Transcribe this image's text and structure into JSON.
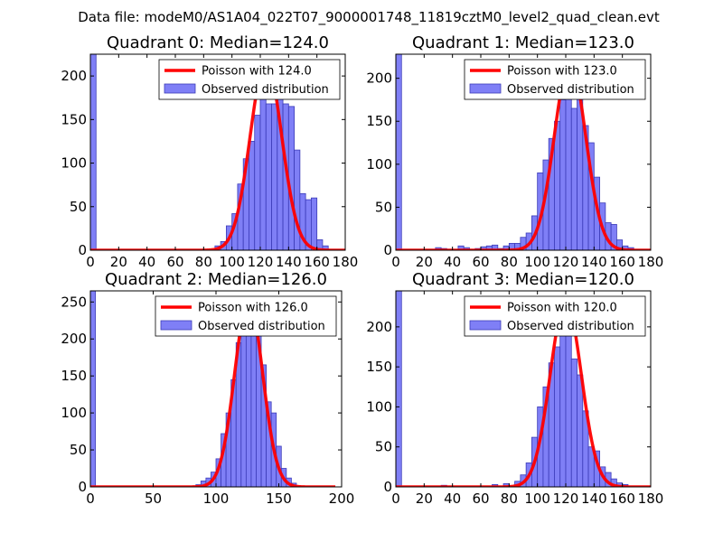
{
  "figure": {
    "suptitle": "Data file: modeM0/AS1A04_022T07_9000001748_11819cztM0_level2_quad_clean.evt",
    "colors": {
      "hist_fill": "#7f7ff6",
      "hist_edge": "#3b3bb8",
      "poisson_line": "#ff0000"
    }
  },
  "chart_data": [
    {
      "type": "bar",
      "title": "Quadrant 0: Median=124.0",
      "xlim": [
        0,
        180
      ],
      "ylim": [
        0,
        225
      ],
      "xticks": [
        "0",
        "20",
        "40",
        "60",
        "80",
        "100",
        "120",
        "140",
        "160",
        "180"
      ],
      "yticks": [
        "0",
        "50",
        "100",
        "150",
        "200"
      ],
      "legend": {
        "placement": "top-right",
        "line_label": "Poisson with 124.0",
        "hist_label": "Observed distribution"
      },
      "poisson": {
        "mean": 124.0,
        "peak": 217,
        "sigma": 11.1,
        "range": [
          0,
          180
        ]
      },
      "bin_width": 4,
      "bars": [
        {
          "x": 0,
          "value": 225
        },
        {
          "x": 88,
          "value": 5
        },
        {
          "x": 92,
          "value": 10
        },
        {
          "x": 96,
          "value": 28
        },
        {
          "x": 100,
          "value": 42
        },
        {
          "x": 104,
          "value": 76
        },
        {
          "x": 108,
          "value": 105
        },
        {
          "x": 112,
          "value": 125
        },
        {
          "x": 116,
          "value": 155
        },
        {
          "x": 120,
          "value": 210
        },
        {
          "x": 124,
          "value": 168
        },
        {
          "x": 128,
          "value": 168
        },
        {
          "x": 132,
          "value": 200
        },
        {
          "x": 136,
          "value": 168
        },
        {
          "x": 140,
          "value": 165
        },
        {
          "x": 144,
          "value": 115
        },
        {
          "x": 148,
          "value": 65
        },
        {
          "x": 152,
          "value": 58
        },
        {
          "x": 156,
          "value": 60
        },
        {
          "x": 160,
          "value": 12
        },
        {
          "x": 164,
          "value": 5
        }
      ]
    },
    {
      "type": "bar",
      "title": "Quadrant 1: Median=123.0",
      "xlim": [
        0,
        180
      ],
      "ylim": [
        0,
        228
      ],
      "xticks": [
        "0",
        "20",
        "40",
        "60",
        "80",
        "100",
        "120",
        "140",
        "160",
        "180"
      ],
      "yticks": [
        "0",
        "50",
        "100",
        "150",
        "200"
      ],
      "legend": {
        "placement": "top-right",
        "line_label": "Poisson with 123.0",
        "hist_label": "Observed distribution"
      },
      "poisson": {
        "mean": 123.0,
        "peak": 219,
        "sigma": 11.1,
        "range": [
          0,
          180
        ]
      },
      "bin_width": 4,
      "bars": [
        {
          "x": 0,
          "value": 228
        },
        {
          "x": 28,
          "value": 3
        },
        {
          "x": 32,
          "value": 2
        },
        {
          "x": 44,
          "value": 5
        },
        {
          "x": 48,
          "value": 3
        },
        {
          "x": 56,
          "value": 2
        },
        {
          "x": 60,
          "value": 4
        },
        {
          "x": 64,
          "value": 5
        },
        {
          "x": 68,
          "value": 6
        },
        {
          "x": 72,
          "value": 2
        },
        {
          "x": 76,
          "value": 5
        },
        {
          "x": 80,
          "value": 8
        },
        {
          "x": 84,
          "value": 8
        },
        {
          "x": 88,
          "value": 15
        },
        {
          "x": 92,
          "value": 20
        },
        {
          "x": 96,
          "value": 40
        },
        {
          "x": 100,
          "value": 90
        },
        {
          "x": 104,
          "value": 105
        },
        {
          "x": 108,
          "value": 130
        },
        {
          "x": 112,
          "value": 150
        },
        {
          "x": 116,
          "value": 175
        },
        {
          "x": 120,
          "value": 200
        },
        {
          "x": 124,
          "value": 165
        },
        {
          "x": 128,
          "value": 180
        },
        {
          "x": 132,
          "value": 145
        },
        {
          "x": 136,
          "value": 125
        },
        {
          "x": 140,
          "value": 85
        },
        {
          "x": 144,
          "value": 55
        },
        {
          "x": 148,
          "value": 32
        },
        {
          "x": 152,
          "value": 30
        },
        {
          "x": 156,
          "value": 12
        },
        {
          "x": 160,
          "value": 5
        },
        {
          "x": 164,
          "value": 3
        }
      ]
    },
    {
      "type": "bar",
      "title": "Quadrant 2: Median=126.0",
      "xlim": [
        0,
        200
      ],
      "ylim": [
        0,
        265
      ],
      "xticks": [
        "0",
        "50",
        "100",
        "150",
        "200"
      ],
      "yticks": [
        "0",
        "50",
        "100",
        "150",
        "200",
        "250"
      ],
      "legend": {
        "placement": "top-right",
        "line_label": "Poisson with 126.0",
        "hist_label": "Observed distribution"
      },
      "poisson": {
        "mean": 126.0,
        "peak": 252,
        "sigma": 11.2,
        "range": [
          0,
          195
        ]
      },
      "bin_width": 4,
      "bars": [
        {
          "x": 0,
          "value": 265
        },
        {
          "x": 84,
          "value": 3
        },
        {
          "x": 88,
          "value": 8
        },
        {
          "x": 92,
          "value": 12
        },
        {
          "x": 96,
          "value": 20
        },
        {
          "x": 100,
          "value": 38
        },
        {
          "x": 104,
          "value": 72
        },
        {
          "x": 108,
          "value": 100
        },
        {
          "x": 112,
          "value": 145
        },
        {
          "x": 116,
          "value": 195
        },
        {
          "x": 120,
          "value": 220
        },
        {
          "x": 124,
          "value": 205
        },
        {
          "x": 128,
          "value": 250
        },
        {
          "x": 132,
          "value": 215
        },
        {
          "x": 136,
          "value": 165
        },
        {
          "x": 140,
          "value": 115
        },
        {
          "x": 144,
          "value": 100
        },
        {
          "x": 148,
          "value": 55
        },
        {
          "x": 152,
          "value": 25
        },
        {
          "x": 156,
          "value": 12
        },
        {
          "x": 160,
          "value": 5
        }
      ]
    },
    {
      "type": "bar",
      "title": "Quadrant 3: Median=120.0",
      "xlim": [
        0,
        180
      ],
      "ylim": [
        0,
        245
      ],
      "xticks": [
        "0",
        "20",
        "40",
        "60",
        "80",
        "100",
        "120",
        "140",
        "160",
        "180"
      ],
      "yticks": [
        "0",
        "50",
        "100",
        "150",
        "200"
      ],
      "legend": {
        "placement": "top-right",
        "line_label": "Poisson with 120.0",
        "hist_label": "Observed distribution"
      },
      "poisson": {
        "mean": 120.0,
        "peak": 232,
        "sigma": 11.0,
        "range": [
          0,
          180
        ]
      },
      "bin_width": 4,
      "bars": [
        {
          "x": 0,
          "value": 245
        },
        {
          "x": 32,
          "value": 2
        },
        {
          "x": 68,
          "value": 3
        },
        {
          "x": 76,
          "value": 4
        },
        {
          "x": 84,
          "value": 7
        },
        {
          "x": 88,
          "value": 15
        },
        {
          "x": 92,
          "value": 30
        },
        {
          "x": 96,
          "value": 62
        },
        {
          "x": 100,
          "value": 100
        },
        {
          "x": 104,
          "value": 125
        },
        {
          "x": 108,
          "value": 155
        },
        {
          "x": 112,
          "value": 175
        },
        {
          "x": 116,
          "value": 190
        },
        {
          "x": 120,
          "value": 205
        },
        {
          "x": 124,
          "value": 160
        },
        {
          "x": 128,
          "value": 140
        },
        {
          "x": 132,
          "value": 95
        },
        {
          "x": 136,
          "value": 50
        },
        {
          "x": 140,
          "value": 45
        },
        {
          "x": 144,
          "value": 25
        },
        {
          "x": 148,
          "value": 18
        },
        {
          "x": 152,
          "value": 10
        },
        {
          "x": 156,
          "value": 5
        },
        {
          "x": 160,
          "value": 3
        }
      ]
    }
  ]
}
